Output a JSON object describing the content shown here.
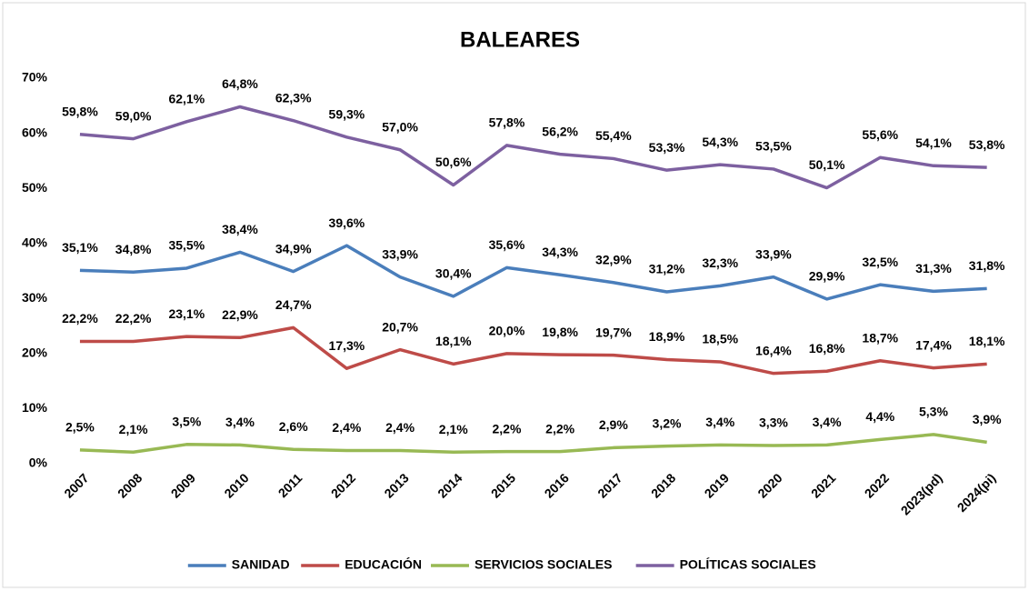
{
  "chart_data": {
    "type": "line",
    "title": "BALEARES",
    "categories": [
      "2007",
      "2008",
      "2009",
      "2010",
      "2011",
      "2012",
      "2013",
      "2014",
      "2015",
      "2016",
      "2017",
      "2018",
      "2019",
      "2020",
      "2021",
      "2022",
      "2023(pd)",
      "2024(pi)"
    ],
    "ylim": [
      0,
      70
    ],
    "yticks": [
      {
        "value": 0,
        "label": "0%"
      },
      {
        "value": 10,
        "label": "10%"
      },
      {
        "value": 20,
        "label": "20%"
      },
      {
        "value": 30,
        "label": "30%"
      },
      {
        "value": 40,
        "label": "40%"
      },
      {
        "value": 50,
        "label": "50%"
      },
      {
        "value": 60,
        "label": "60%"
      },
      {
        "value": 70,
        "label": "70%"
      }
    ],
    "grid": false,
    "legend": "bottom",
    "series": [
      {
        "name": "SANIDAD",
        "color": "#4a7ebb",
        "values": [
          35.1,
          34.8,
          35.5,
          38.4,
          34.9,
          39.6,
          33.9,
          30.4,
          35.6,
          34.3,
          32.9,
          31.2,
          32.3,
          33.9,
          29.9,
          32.5,
          31.3,
          31.8
        ],
        "value_labels": [
          "35,1%",
          "34,8%",
          "35,5%",
          "38,4%",
          "34,9%",
          "39,6%",
          "33,9%",
          "30,4%",
          "35,6%",
          "34,3%",
          "32,9%",
          "31,2%",
          "32,3%",
          "33,9%",
          "29,9%",
          "32,5%",
          "31,3%",
          "31,8%"
        ]
      },
      {
        "name": "EDUCACIÓN",
        "color": "#be4b48",
        "values": [
          22.2,
          22.2,
          23.1,
          22.9,
          24.7,
          17.3,
          20.7,
          18.1,
          20.0,
          19.8,
          19.7,
          18.9,
          18.5,
          16.4,
          16.8,
          18.7,
          17.4,
          18.1
        ],
        "value_labels": [
          "22,2%",
          "22,2%",
          "23,1%",
          "22,9%",
          "24,7%",
          "17,3%",
          "20,7%",
          "18,1%",
          "20,0%",
          "19,8%",
          "19,7%",
          "18,9%",
          "18,5%",
          "16,4%",
          "16,8%",
          "18,7%",
          "17,4%",
          "18,1%"
        ]
      },
      {
        "name": "SERVICIOS SOCIALES",
        "color": "#98b954",
        "values": [
          2.5,
          2.1,
          3.5,
          3.4,
          2.6,
          2.4,
          2.4,
          2.1,
          2.2,
          2.2,
          2.9,
          3.2,
          3.4,
          3.3,
          3.4,
          4.4,
          5.3,
          3.9
        ],
        "value_labels": [
          "2,5%",
          "2,1%",
          "3,5%",
          "3,4%",
          "2,6%",
          "2,4%",
          "2,4%",
          "2,1%",
          "2,2%",
          "2,2%",
          "2,9%",
          "3,2%",
          "3,4%",
          "3,3%",
          "3,4%",
          "4,4%",
          "5,3%",
          "3,9%"
        ]
      },
      {
        "name": "POLÍTICAS SOCIALES",
        "color": "#7d60a0",
        "values": [
          59.8,
          59.0,
          62.1,
          64.8,
          62.3,
          59.3,
          57.0,
          50.6,
          57.8,
          56.2,
          55.4,
          53.3,
          54.3,
          53.5,
          50.1,
          55.6,
          54.1,
          53.8
        ],
        "value_labels": [
          "59,8%",
          "59,0%",
          "62,1%",
          "64,8%",
          "62,3%",
          "59,3%",
          "57,0%",
          "50,6%",
          "57,8%",
          "56,2%",
          "55,4%",
          "53,3%",
          "54,3%",
          "53,5%",
          "50,1%",
          "55,6%",
          "54,1%",
          "53,8%"
        ]
      }
    ]
  }
}
